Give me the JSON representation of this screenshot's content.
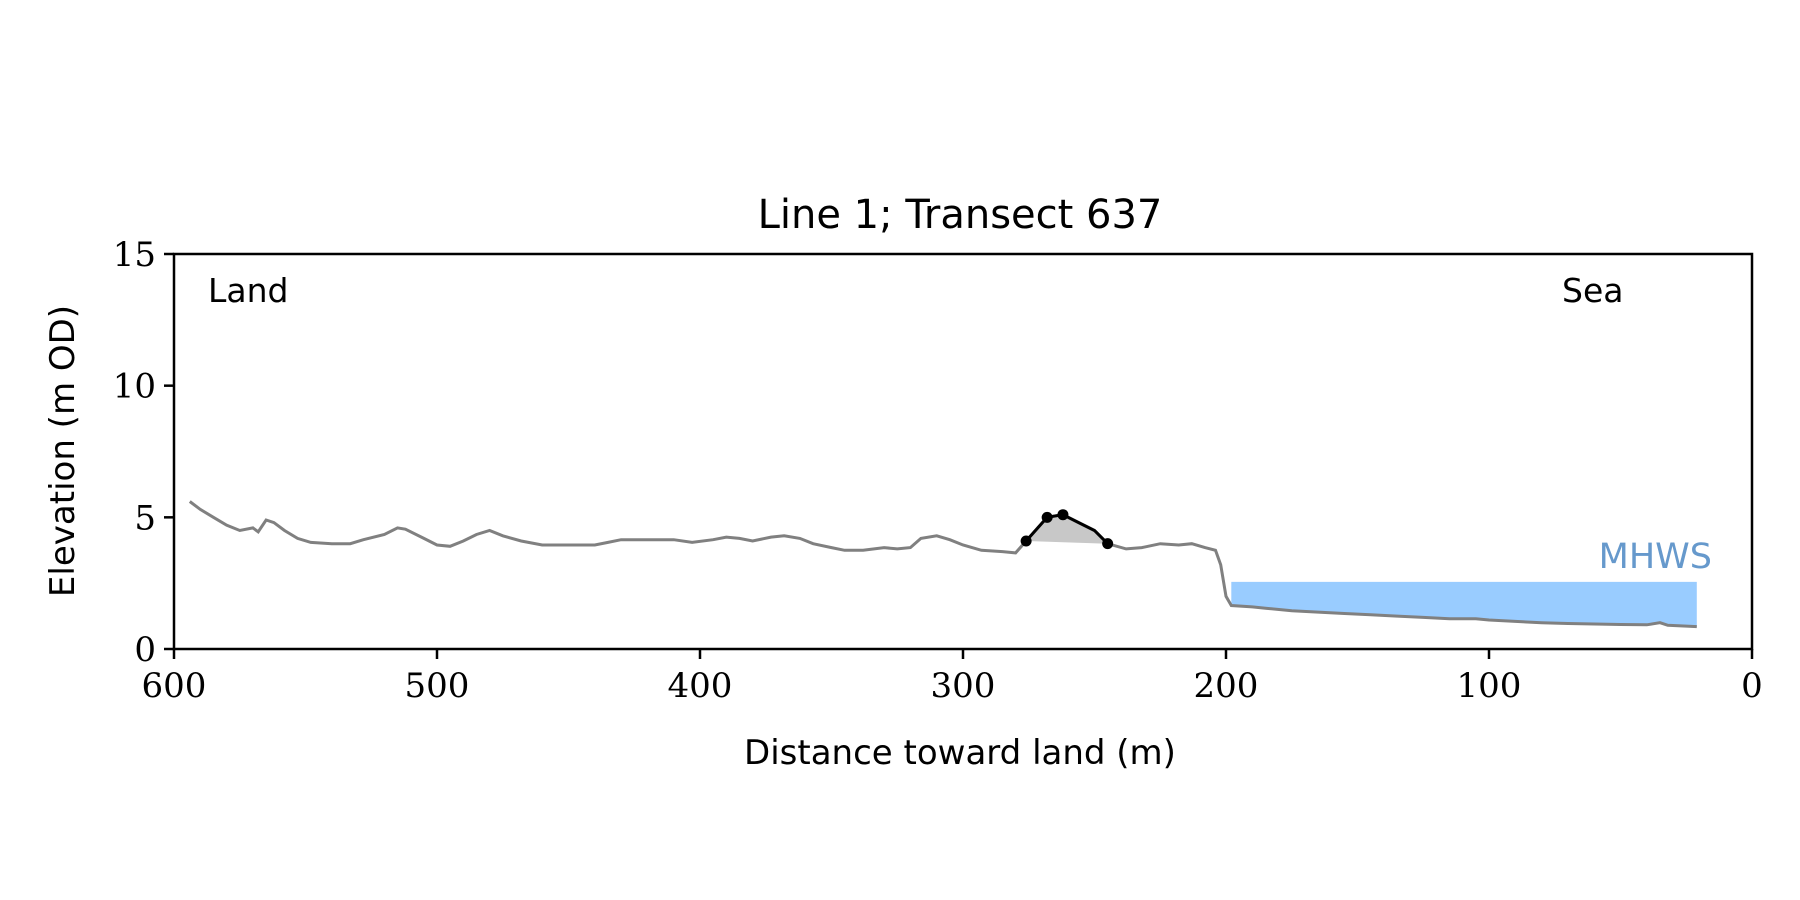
{
  "chart_data": {
    "type": "line",
    "title": "Line 1; Transect 637",
    "xlabel": "Distance toward land (m)",
    "ylabel": "Elevation (m OD)",
    "xlim": [
      600,
      0
    ],
    "ylim": [
      0,
      15
    ],
    "xticks": [
      600,
      500,
      400,
      300,
      200,
      100,
      0
    ],
    "yticks": [
      0,
      5,
      10,
      15
    ],
    "grid": false,
    "annotations": {
      "left": "Land",
      "right": "Sea"
    },
    "mhws": {
      "label": "MHWS",
      "x_start": 198,
      "x_end": 21,
      "elevation": 2.55,
      "color": "#99ccff",
      "label_color": "#6699cc"
    },
    "profile_color": "#808080",
    "profile": [
      [
        594,
        5.6
      ],
      [
        590,
        5.3
      ],
      [
        585,
        5.0
      ],
      [
        580,
        4.7
      ],
      [
        575,
        4.5
      ],
      [
        570,
        4.6
      ],
      [
        568,
        4.45
      ],
      [
        565,
        4.9
      ],
      [
        562,
        4.8
      ],
      [
        558,
        4.5
      ],
      [
        553,
        4.2
      ],
      [
        548,
        4.05
      ],
      [
        540,
        4.0
      ],
      [
        533,
        4.0
      ],
      [
        528,
        4.15
      ],
      [
        520,
        4.35
      ],
      [
        515,
        4.6
      ],
      [
        512,
        4.55
      ],
      [
        505,
        4.2
      ],
      [
        500,
        3.95
      ],
      [
        495,
        3.9
      ],
      [
        490,
        4.1
      ],
      [
        485,
        4.35
      ],
      [
        480,
        4.5
      ],
      [
        475,
        4.3
      ],
      [
        468,
        4.1
      ],
      [
        460,
        3.95
      ],
      [
        450,
        3.95
      ],
      [
        440,
        3.95
      ],
      [
        435,
        4.05
      ],
      [
        430,
        4.15
      ],
      [
        420,
        4.15
      ],
      [
        410,
        4.15
      ],
      [
        403,
        4.05
      ],
      [
        395,
        4.15
      ],
      [
        390,
        4.25
      ],
      [
        385,
        4.2
      ],
      [
        380,
        4.1
      ],
      [
        373,
        4.25
      ],
      [
        368,
        4.3
      ],
      [
        362,
        4.2
      ],
      [
        357,
        4.0
      ],
      [
        350,
        3.85
      ],
      [
        345,
        3.75
      ],
      [
        338,
        3.75
      ],
      [
        330,
        3.85
      ],
      [
        325,
        3.8
      ],
      [
        320,
        3.85
      ],
      [
        316,
        4.2
      ],
      [
        310,
        4.3
      ],
      [
        305,
        4.15
      ],
      [
        300,
        3.95
      ],
      [
        293,
        3.75
      ],
      [
        285,
        3.7
      ],
      [
        280,
        3.65
      ],
      [
        276,
        4.1
      ],
      [
        268,
        5.0
      ],
      [
        262,
        5.1
      ],
      [
        256,
        4.8
      ],
      [
        250,
        4.5
      ],
      [
        245,
        4.0
      ],
      [
        238,
        3.8
      ],
      [
        232,
        3.85
      ],
      [
        225,
        4.0
      ],
      [
        218,
        3.95
      ],
      [
        213,
        4.0
      ],
      [
        208,
        3.85
      ],
      [
        204,
        3.75
      ],
      [
        202,
        3.2
      ],
      [
        200,
        2.0
      ],
      [
        198,
        1.65
      ],
      [
        190,
        1.6
      ],
      [
        185,
        1.55
      ],
      [
        175,
        1.45
      ],
      [
        165,
        1.4
      ],
      [
        155,
        1.35
      ],
      [
        145,
        1.3
      ],
      [
        135,
        1.25
      ],
      [
        125,
        1.2
      ],
      [
        115,
        1.15
      ],
      [
        105,
        1.15
      ],
      [
        100,
        1.1
      ],
      [
        90,
        1.05
      ],
      [
        80,
        1.0
      ],
      [
        70,
        0.97
      ],
      [
        60,
        0.95
      ],
      [
        50,
        0.93
      ],
      [
        40,
        0.92
      ],
      [
        35,
        1.0
      ],
      [
        32,
        0.9
      ],
      [
        21,
        0.85
      ]
    ],
    "feature_color": "#000000",
    "feature_fill": "#c8c8c8",
    "feature": [
      [
        276,
        4.1
      ],
      [
        268,
        5.0
      ],
      [
        262,
        5.1
      ],
      [
        256,
        4.8
      ],
      [
        250,
        4.5
      ],
      [
        245,
        4.0
      ]
    ],
    "feature_points": [
      [
        276,
        4.1
      ],
      [
        268,
        5.0
      ],
      [
        262,
        5.1
      ],
      [
        245,
        4.0
      ]
    ],
    "feature_base": [
      [
        276,
        4.1
      ],
      [
        245,
        4.0
      ]
    ]
  }
}
